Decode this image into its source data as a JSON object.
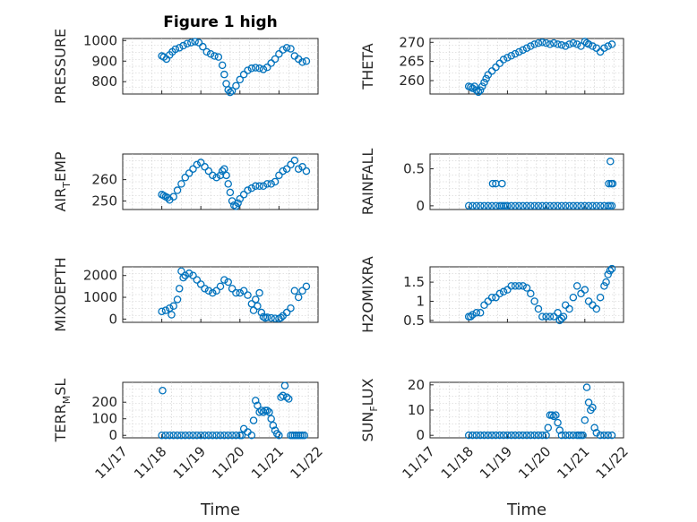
{
  "figure": {
    "title": "Figure 1 high",
    "marker_color": "#0072BD"
  },
  "chart_data": [
    {
      "id": "pressure",
      "type": "scatter",
      "ylabel": {
        "main": "PRESSURE"
      },
      "ylim": [
        740,
        1010
      ],
      "yticks": [
        800,
        900,
        1000
      ],
      "yticklabels": [
        "800",
        "900",
        "1000"
      ],
      "grid": true,
      "x": [
        18.0,
        18.05,
        18.12,
        18.2,
        18.27,
        18.35,
        18.45,
        18.55,
        18.65,
        18.75,
        18.85,
        18.95,
        19.05,
        19.15,
        19.25,
        19.35,
        19.45,
        19.55,
        19.6,
        19.65,
        19.7,
        19.75,
        19.8,
        19.9,
        20.0,
        20.1,
        20.2,
        20.3,
        20.4,
        20.5,
        20.6,
        20.7,
        20.8,
        20.9,
        21.0,
        21.1,
        21.2,
        21.3,
        21.4,
        21.5,
        21.6,
        21.7
      ],
      "y": [
        925,
        920,
        910,
        930,
        945,
        958,
        965,
        975,
        985,
        990,
        995,
        990,
        970,
        945,
        935,
        925,
        920,
        880,
        835,
        790,
        760,
        748,
        755,
        780,
        810,
        835,
        855,
        865,
        868,
        865,
        860,
        870,
        890,
        910,
        935,
        955,
        965,
        960,
        925,
        910,
        895,
        900
      ]
    },
    {
      "id": "theta",
      "type": "scatter",
      "ylabel": {
        "main": "THETA"
      },
      "ylim": [
        256.5,
        271
      ],
      "yticks": [
        260,
        265,
        270
      ],
      "yticklabels": [
        "260",
        "265",
        "270"
      ],
      "grid": true,
      "x": [
        18.0,
        18.05,
        18.1,
        18.15,
        18.2,
        18.25,
        18.3,
        18.35,
        18.4,
        18.45,
        18.5,
        18.6,
        18.7,
        18.8,
        18.9,
        19.0,
        19.1,
        19.2,
        19.3,
        19.4,
        19.5,
        19.6,
        19.7,
        19.8,
        19.9,
        20.0,
        20.1,
        20.2,
        20.3,
        20.4,
        20.5,
        20.6,
        20.7,
        20.8,
        20.9,
        21.0,
        21.05,
        21.1,
        21.2,
        21.3,
        21.4,
        21.5,
        21.6,
        21.7
      ],
      "y": [
        258.5,
        258.3,
        258,
        258.5,
        257.5,
        257,
        257.5,
        258.5,
        259.5,
        260.5,
        261.5,
        262.5,
        263.5,
        264.5,
        265.5,
        266,
        266.5,
        267,
        267.5,
        268,
        268.5,
        269,
        269.5,
        269.8,
        270,
        269.8,
        269.5,
        269.8,
        269.5,
        269.3,
        269,
        269.5,
        269.8,
        269.5,
        269,
        270.2,
        269.8,
        269.5,
        269,
        268.5,
        267.5,
        268.5,
        269,
        269.5
      ]
    },
    {
      "id": "air_temp",
      "type": "scatter",
      "ylabel": {
        "main": "AIR",
        "sub": "T",
        "rest": "EMP"
      },
      "ylim": [
        246,
        272
      ],
      "yticks": [
        250,
        260
      ],
      "yticklabels": [
        "250",
        "260"
      ],
      "grid": true,
      "x": [
        18.0,
        18.05,
        18.1,
        18.15,
        18.2,
        18.3,
        18.4,
        18.5,
        18.6,
        18.7,
        18.8,
        18.9,
        19.0,
        19.1,
        19.2,
        19.3,
        19.4,
        19.5,
        19.55,
        19.6,
        19.65,
        19.7,
        19.75,
        19.8,
        19.85,
        19.9,
        19.95,
        20.0,
        20.1,
        20.2,
        20.3,
        20.4,
        20.5,
        20.6,
        20.7,
        20.8,
        20.9,
        21.0,
        21.1,
        21.2,
        21.3,
        21.4,
        21.5,
        21.6,
        21.7
      ],
      "y": [
        253,
        252.5,
        252,
        251.5,
        250.5,
        252,
        255,
        258,
        261,
        263,
        265,
        267,
        268,
        266,
        264,
        262,
        261,
        262,
        264,
        265,
        262,
        258,
        254,
        250,
        248,
        247.5,
        249,
        251,
        253,
        255,
        256,
        257,
        257,
        257,
        258,
        258,
        259,
        262,
        264,
        265,
        267,
        269,
        265,
        266,
        264
      ]
    },
    {
      "id": "rainfall",
      "type": "scatter",
      "ylabel": {
        "main": "RAINFALL"
      },
      "ylim": [
        -0.05,
        0.7
      ],
      "yticks": [
        0,
        0.5
      ],
      "yticklabels": [
        "0",
        "0.5"
      ],
      "grid": true,
      "x": [
        18.0,
        18.1,
        18.2,
        18.3,
        18.4,
        18.5,
        18.6,
        18.7,
        18.8,
        18.85,
        18.9,
        18.95,
        19.0,
        19.1,
        19.2,
        19.3,
        19.4,
        19.5,
        19.6,
        19.7,
        19.8,
        19.9,
        20.0,
        20.1,
        20.2,
        20.3,
        20.4,
        20.5,
        20.6,
        20.7,
        20.8,
        20.9,
        21.0,
        21.1,
        21.2,
        21.3,
        21.4,
        21.5,
        21.6,
        21.65,
        21.7,
        18.62,
        18.7,
        18.86,
        21.62,
        21.68,
        21.72,
        21.66
      ],
      "y": [
        0,
        0,
        0,
        0,
        0,
        0,
        0,
        0,
        0,
        0,
        0,
        0,
        0,
        0,
        0,
        0,
        0,
        0,
        0,
        0,
        0,
        0,
        0,
        0,
        0,
        0,
        0,
        0,
        0,
        0,
        0,
        0,
        0,
        0,
        0,
        0,
        0,
        0,
        0,
        0,
        0,
        0.3,
        0.3,
        0.3,
        0.3,
        0.3,
        0.3,
        0.6
      ]
    },
    {
      "id": "mixdepth",
      "type": "scatter",
      "ylabel": {
        "main": "MIXDEPTH"
      },
      "ylim": [
        -150,
        2400
      ],
      "yticks": [
        0,
        1000,
        2000
      ],
      "yticklabels": [
        "0",
        "1000",
        "2000"
      ],
      "grid": true,
      "x": [
        18.0,
        18.1,
        18.2,
        18.25,
        18.3,
        18.4,
        18.45,
        18.5,
        18.55,
        18.6,
        18.7,
        18.8,
        18.9,
        19.0,
        19.1,
        19.2,
        19.3,
        19.4,
        19.5,
        19.6,
        19.7,
        19.8,
        19.9,
        20.0,
        20.1,
        20.2,
        20.3,
        20.35,
        20.4,
        20.45,
        20.5,
        20.55,
        20.6,
        20.65,
        20.7,
        20.8,
        20.9,
        21.0,
        21.05,
        21.1,
        21.2,
        21.3,
        21.4,
        21.5,
        21.6,
        21.7
      ],
      "y": [
        350,
        400,
        500,
        200,
        600,
        900,
        1400,
        2200,
        1900,
        2000,
        2100,
        2000,
        1800,
        1600,
        1400,
        1300,
        1200,
        1300,
        1500,
        1800,
        1700,
        1400,
        1200,
        1200,
        1300,
        1100,
        700,
        400,
        900,
        600,
        1200,
        300,
        100,
        50,
        80,
        50,
        30,
        20,
        60,
        150,
        300,
        500,
        1300,
        1000,
        1300,
        1500
      ]
    },
    {
      "id": "h2omixra",
      "type": "scatter",
      "ylabel": {
        "main": "H2OMIXRA"
      },
      "ylim": [
        0.45,
        1.9
      ],
      "yticks": [
        0.5,
        1,
        1.5
      ],
      "yticklabels": [
        "0.5",
        "1",
        "1.5"
      ],
      "grid": true,
      "x": [
        18.0,
        18.05,
        18.1,
        18.2,
        18.3,
        18.4,
        18.5,
        18.6,
        18.7,
        18.8,
        18.9,
        19.0,
        19.1,
        19.2,
        19.3,
        19.4,
        19.5,
        19.6,
        19.7,
        19.8,
        19.9,
        20.0,
        20.1,
        20.2,
        20.3,
        20.35,
        20.4,
        20.45,
        20.5,
        20.6,
        20.7,
        20.8,
        20.9,
        21.0,
        21.1,
        21.2,
        21.3,
        21.4,
        21.5,
        21.55,
        21.6,
        21.65,
        21.7
      ],
      "y": [
        0.6,
        0.6,
        0.65,
        0.7,
        0.7,
        0.9,
        1.0,
        1.1,
        1.1,
        1.2,
        1.25,
        1.3,
        1.4,
        1.4,
        1.4,
        1.4,
        1.35,
        1.2,
        1.0,
        0.8,
        0.6,
        0.6,
        0.6,
        0.6,
        0.7,
        0.5,
        0.55,
        0.6,
        0.9,
        0.8,
        1.1,
        1.4,
        1.2,
        1.3,
        1.0,
        0.9,
        0.8,
        1.1,
        1.4,
        1.5,
        1.7,
        1.8,
        1.85
      ]
    },
    {
      "id": "terr_msl",
      "type": "scatter",
      "ylabel": {
        "main": "TERR",
        "sub": "M",
        "rest": "SL"
      },
      "ylim": [
        -15,
        320
      ],
      "yticks": [
        0,
        100,
        200
      ],
      "yticklabels": [
        "0",
        "100",
        "200"
      ],
      "grid": true,
      "x": [
        18.0,
        18.02,
        18.1,
        18.2,
        18.3,
        18.4,
        18.5,
        18.6,
        18.7,
        18.8,
        18.9,
        19.0,
        19.1,
        19.2,
        19.3,
        19.4,
        19.5,
        19.6,
        19.7,
        19.8,
        19.9,
        20.0,
        20.05,
        20.1,
        20.2,
        20.3,
        20.35,
        20.4,
        20.45,
        20.5,
        20.55,
        20.6,
        20.65,
        20.7,
        20.75,
        20.8,
        20.85,
        20.9,
        20.95,
        21.0,
        21.05,
        21.1,
        21.15,
        21.2,
        21.25,
        21.3,
        21.35,
        21.4,
        21.45,
        21.5,
        21.55,
        21.6,
        21.65
      ],
      "y": [
        0,
        270,
        0,
        0,
        0,
        0,
        0,
        0,
        0,
        0,
        0,
        0,
        0,
        0,
        0,
        0,
        0,
        0,
        0,
        0,
        0,
        0,
        0,
        40,
        20,
        0,
        90,
        210,
        180,
        140,
        150,
        140,
        150,
        150,
        140,
        100,
        60,
        30,
        10,
        0,
        230,
        240,
        300,
        230,
        220,
        0,
        0,
        0,
        0,
        0,
        0,
        0,
        0
      ]
    },
    {
      "id": "sun_flux",
      "type": "scatter",
      "ylabel": {
        "main": "SUN",
        "sub": "F",
        "rest": "LUX"
      },
      "ylim": [
        -1,
        21
      ],
      "yticks": [
        0,
        10,
        20
      ],
      "yticklabels": [
        "0",
        "10",
        "20"
      ],
      "grid": true,
      "x": [
        18.0,
        18.1,
        18.2,
        18.3,
        18.4,
        18.5,
        18.6,
        18.7,
        18.8,
        18.9,
        19.0,
        19.1,
        19.2,
        19.3,
        19.4,
        19.5,
        19.6,
        19.7,
        19.8,
        19.9,
        20.0,
        20.05,
        20.1,
        20.15,
        20.2,
        20.25,
        20.3,
        20.35,
        20.4,
        20.5,
        20.6,
        20.7,
        20.8,
        20.85,
        20.9,
        20.95,
        21.0,
        21.05,
        21.1,
        21.15,
        21.2,
        21.25,
        21.3,
        21.4,
        21.5,
        21.6,
        21.7
      ],
      "y": [
        0,
        0,
        0,
        0,
        0,
        0,
        0,
        0,
        0,
        0,
        0,
        0,
        0,
        0,
        0,
        0,
        0,
        0,
        0,
        0,
        0,
        3,
        8,
        8,
        7.5,
        8,
        5,
        2,
        0,
        0,
        0,
        0,
        0,
        0,
        0,
        0,
        6,
        19,
        13,
        10,
        11,
        3,
        1,
        0,
        0,
        0,
        0
      ]
    }
  ],
  "x_axis": {
    "xlim": [
      17,
      22
    ],
    "ticks": [
      17,
      18,
      19,
      20,
      21,
      22
    ],
    "ticklabels": [
      "11/17",
      "11/18",
      "11/19",
      "11/20",
      "11/21",
      "11/22"
    ],
    "xlabel": "Time"
  }
}
